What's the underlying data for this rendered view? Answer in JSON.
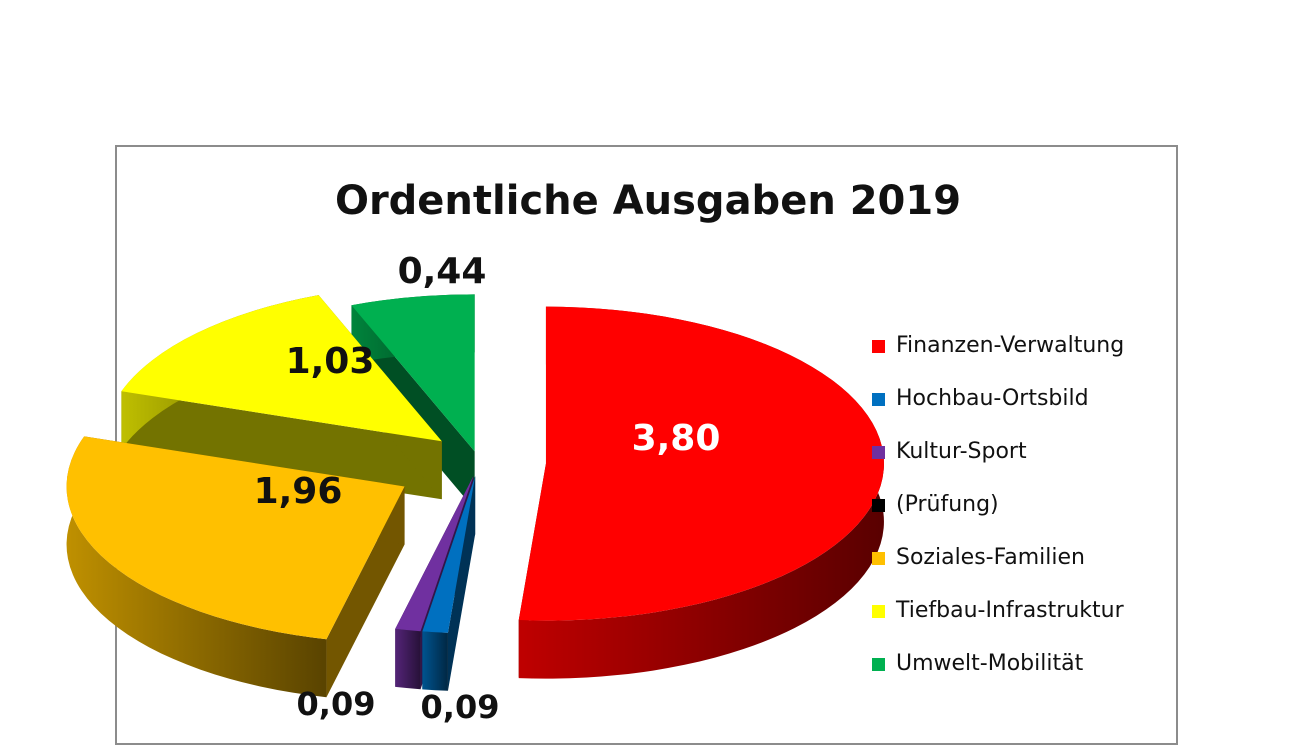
{
  "chart_data": {
    "type": "pie",
    "title": "Ordentliche Ausgaben 2019",
    "labels": [
      "Finanzen-Verwaltung",
      "Hochbau-Ortsbild",
      "Kultur-Sport",
      "(Prüfung)",
      "Soziales-Familien",
      "Tiefbau-Infrastruktur",
      "Umwelt-Mobilität"
    ],
    "values": [
      3.8,
      0.09,
      0.09,
      0.0,
      1.96,
      1.03,
      0.44
    ],
    "value_labels": [
      "3,80",
      "0,09",
      "0,09",
      "",
      "1,96",
      "1,03",
      "0,44"
    ],
    "colors": [
      "#ff0000",
      "#0070c0",
      "#7030a0",
      "#000000",
      "#ffc000",
      "#ffff00",
      "#00b050"
    ],
    "label_colors": [
      "#ffffff",
      "#111111",
      "#111111",
      "#111111",
      "#111111",
      "#111111",
      "#111111"
    ],
    "exploded": true,
    "style": "3d",
    "legend_position": "right"
  }
}
